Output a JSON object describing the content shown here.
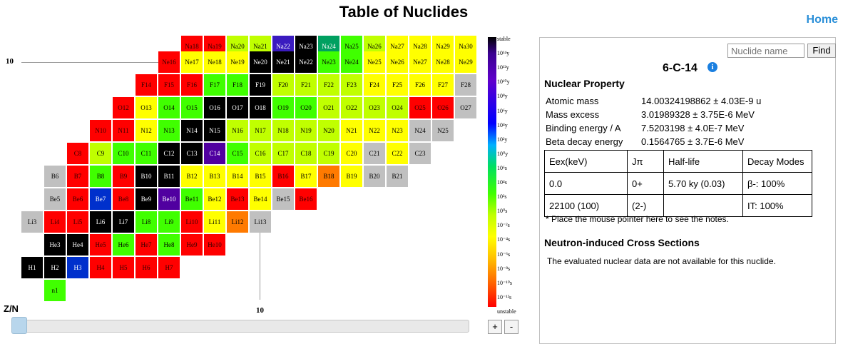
{
  "page": {
    "title": "Table of Nuclides",
    "home_link": "Home"
  },
  "axis": {
    "n_label": "10",
    "z_label": "10",
    "zn_label": "Z/N"
  },
  "zoom": {
    "plus": "+",
    "minus": "-"
  },
  "legend": {
    "labels": [
      "stable",
      "10¹⁴y",
      "10¹²y",
      "10¹⁰y",
      "10⁸y",
      "10⁶y",
      "10⁴y",
      "10²y",
      "10⁰y",
      "10⁶s",
      "10⁴s",
      "10²s",
      "10⁰s",
      "10⁻²s",
      "10⁻⁴s",
      "10⁻⁶s",
      "10⁻⁸s",
      "10⁻¹⁰s",
      "10⁻¹²s",
      "unstable"
    ]
  },
  "colors": {
    "R": "#ff0000",
    "G": "#40ff00",
    "K": "#000000",
    "Y": "#ffff00",
    "L": "#c0ff00",
    "S": "#c0c0c0",
    "O": "#ff7a00",
    "B": "#0030cc",
    "P": "#5000a0",
    "Q": "#3a1bbf",
    "T": "#00a060",
    "D": "#1f9f6a"
  },
  "chart_rows": [
    {
      "y": 0,
      "start": 254,
      "cells": [
        "Na18:R",
        "Na19:R",
        "Na20:L",
        "Na21:L",
        "Na22:Q",
        "Na23:K",
        "Na24:T",
        "Na25:G",
        "Na26:L",
        "Na27:Y",
        "Na28:Y",
        "Na29:Y",
        "Na30:Y"
      ]
    },
    {
      "y": 22,
      "start": 222,
      "cells": [
        "Ne16:R",
        "Ne17:Y",
        "Ne18:Y",
        "Ne19:Y",
        "Ne20:K",
        "Ne21:K",
        "Ne22:K",
        "Ne23:G",
        "Ne24:G",
        "Ne25:Y",
        "Ne26:Y",
        "Ne27:Y",
        "Ne28:Y",
        "Ne29:Y"
      ]
    },
    {
      "y": 54,
      "start": 190,
      "cells": [
        "F14:R",
        "F15:R",
        "F16:R",
        "F17:G",
        "F18:G",
        "F19:K",
        "F20:L",
        "F21:L",
        "F22:L",
        "F23:L",
        "F24:Y",
        "F25:Y",
        "F26:Y",
        "F27:Y",
        "F28:S"
      ]
    },
    {
      "y": 86,
      "start": 158,
      "cells": [
        "O12:R",
        "O13:Y",
        "O14:G",
        "O15:G",
        "O16:K",
        "O17:K",
        "O18:K",
        "O19:G",
        "O20:G",
        "O21:L",
        "O22:L",
        "O23:L",
        "O24:L",
        "O25:R",
        "O26:R",
        "O27:S"
      ]
    },
    {
      "y": 118,
      "start": 126,
      "cells": [
        "N10:R",
        "N11:R",
        "N12:Y",
        "N13:G",
        "N14:K",
        "N15:K",
        "N16:L",
        "N17:L",
        "N18:L",
        "N19:L",
        "N20:L",
        "N21:Y",
        "N22:Y",
        "N23:Y",
        "N24:S",
        "N25:S"
      ]
    },
    {
      "y": 150,
      "start": 94,
      "cells": [
        "C8:R",
        "C9:L",
        "C10:G",
        "C11:G",
        "C12:K",
        "C13:K",
        "C14:P",
        "C15:G",
        "C16:L",
        "C17:L",
        "C18:L",
        "C19:L",
        "C20:Y",
        "C21:S",
        "C22:Y",
        "C23:S"
      ]
    },
    {
      "y": 182,
      "start": 62,
      "cells": [
        "B6:S",
        "B7:R",
        "B8:G",
        "B9:R",
        "B10:K",
        "B11:K",
        "B12:Y",
        "B13:Y",
        "B14:Y",
        "B15:Y",
        "B16:R",
        "B17:Y",
        "B18:O",
        "B19:Y",
        "B20:S",
        "B21:S"
      ]
    },
    {
      "y": 214,
      "start": 62,
      "cells": [
        "Be5:S",
        "Be6:R",
        "Be7:B",
        "Be8:R",
        "Be9:K",
        "Be10:P",
        "Be11:G",
        "Be12:Y",
        "Be13:R",
        "Be14:Y",
        "Be15:S",
        "Be16:R"
      ]
    },
    {
      "y": 246,
      "start": 30,
      "cells": [
        "Li3:S",
        "Li4:R",
        "Li5:R",
        "Li6:K",
        "Li7:K",
        "Li8:G",
        "Li9:G",
        "Li10:R",
        "Li11:Y",
        "Li12:O",
        "Li13:S"
      ]
    },
    {
      "y": 278,
      "start": 62,
      "cells": [
        "He3:K",
        "He4:K",
        "He5:R",
        "He6:G",
        "He7:R",
        "He8:G",
        "He9:R",
        "He10:R"
      ]
    },
    {
      "y": 310,
      "start": 30,
      "cells": [
        "H1:K",
        "H2:K",
        "H3:B",
        "H4:R",
        "H5:R",
        "H6:R",
        "H7:R"
      ]
    },
    {
      "y": 342,
      "start": 62,
      "cells": [
        "n1:G"
      ]
    }
  ],
  "search": {
    "placeholder": "Nuclide name",
    "find_label": "Find"
  },
  "nuclide": {
    "name": "6-C-14",
    "info_icon": "i"
  },
  "property": {
    "heading": "Nuclear Property",
    "rows": [
      {
        "label": "Atomic mass",
        "value": "14.00324198862 ± 4.03E-9 u"
      },
      {
        "label": "Mass excess",
        "value": "3.01989328 ± 3.75E-6 MeV"
      },
      {
        "label": "Binding energy / A",
        "value": "7.5203198 ± 4.0E-7 MeV"
      },
      {
        "label": "Beta decay energy",
        "value": "0.1564765 ± 3.7E-6 MeV"
      }
    ]
  },
  "levels": {
    "headers": [
      "Eex(keV)",
      "Jπ",
      "Half-life",
      "Decay Modes"
    ],
    "rows": [
      [
        "0.0",
        "0+",
        "5.70 ky (0.03)",
        "β-: 100%"
      ],
      [
        "22100 (100)",
        "(2-)",
        "",
        "IT: 100%"
      ]
    ],
    "note": "* Place the mouse pointer here to see the notes."
  },
  "cross": {
    "heading": "Neutron-induced Cross Sections",
    "text": "The evaluated nuclear data are not available for this nuclide."
  }
}
